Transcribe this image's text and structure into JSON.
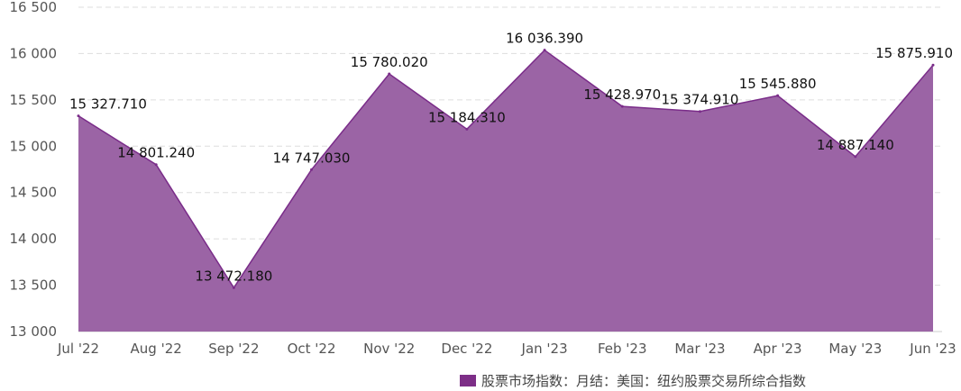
{
  "chart_data": {
    "type": "area",
    "categories": [
      "Jul '22",
      "Aug '22",
      "Sep '22",
      "Oct '22",
      "Nov '22",
      "Dec '22",
      "Jan '23",
      "Feb '23",
      "Mar '23",
      "Apr '23",
      "May '23",
      "Jun '23"
    ],
    "series": [
      {
        "name": "股票市场指数：月结：美国：纽约股票交易所综合指数",
        "values": [
          15327.71,
          14801.24,
          13472.18,
          14747.03,
          15780.02,
          15184.31,
          16036.39,
          15428.97,
          15374.91,
          15545.88,
          14887.14,
          15875.91
        ],
        "labels": [
          "15 327.710",
          "14 801.240",
          "13 472.180",
          "14 747.030",
          "15 780.020",
          "15 184.310",
          "16 036.390",
          "15 428.970",
          "15 374.910",
          "15 545.880",
          "14 887.140",
          "15 875.910"
        ]
      }
    ],
    "y_ticks": [
      13000,
      13500,
      14000,
      14500,
      15000,
      15500,
      16000,
      16500
    ],
    "y_tick_labels": [
      "13 000",
      "13 500",
      "14 000",
      "14 500",
      "15 000",
      "15 500",
      "16 000",
      "16 500"
    ],
    "ylim": [
      13000,
      16500
    ],
    "grid": true,
    "legend_position": "bottom",
    "colors": {
      "fill": "#9b64a5",
      "line": "#7a2c89",
      "legend": "#7d2e87",
      "grid": "#dddddd"
    }
  }
}
